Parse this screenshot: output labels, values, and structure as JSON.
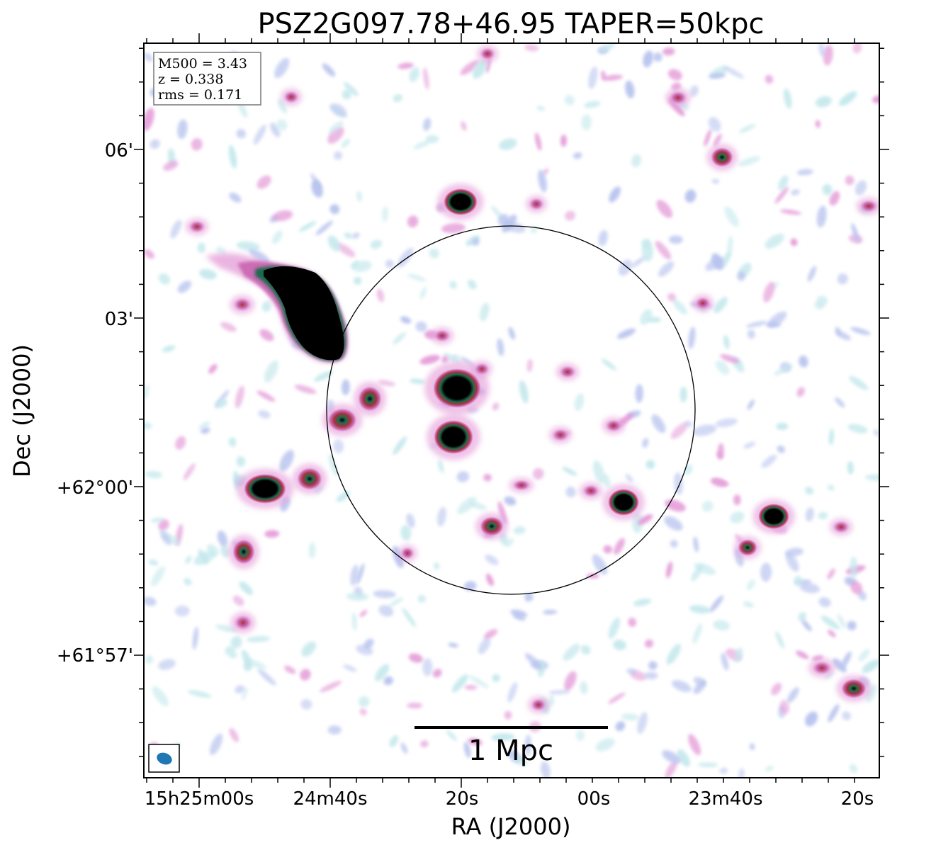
{
  "title": "PSZ2G097.78+46.95 TAPER=50kpc",
  "info_box": {
    "lines": [
      "M500 = 3.43",
      "z = 0.338",
      "rms = 0.171"
    ]
  },
  "x_axis": {
    "label": "RA (J2000)",
    "ticks": [
      "15h25m00s",
      "24m40s",
      "20s",
      "00s",
      "23m40s",
      "20s"
    ]
  },
  "y_axis": {
    "label": "Dec (J2000)",
    "ticks": [
      "06'",
      "03'",
      "+62°00'",
      "+61°57'"
    ]
  },
  "scale_bar": {
    "label": "1 Mpc"
  },
  "colors": {
    "background": "#ffffff",
    "cyan_noise": "#c4e8ec",
    "blue_noise": "#b7c3ee",
    "pink_noise": "#e49bd8",
    "magenta": "#cc6cb4",
    "red": "#a9323f",
    "green": "#1f6b4e",
    "dark": "#000000",
    "beam": "#1f77b4",
    "frame": "#000000"
  },
  "icons": {
    "beam": "beam-ellipse-icon"
  }
}
